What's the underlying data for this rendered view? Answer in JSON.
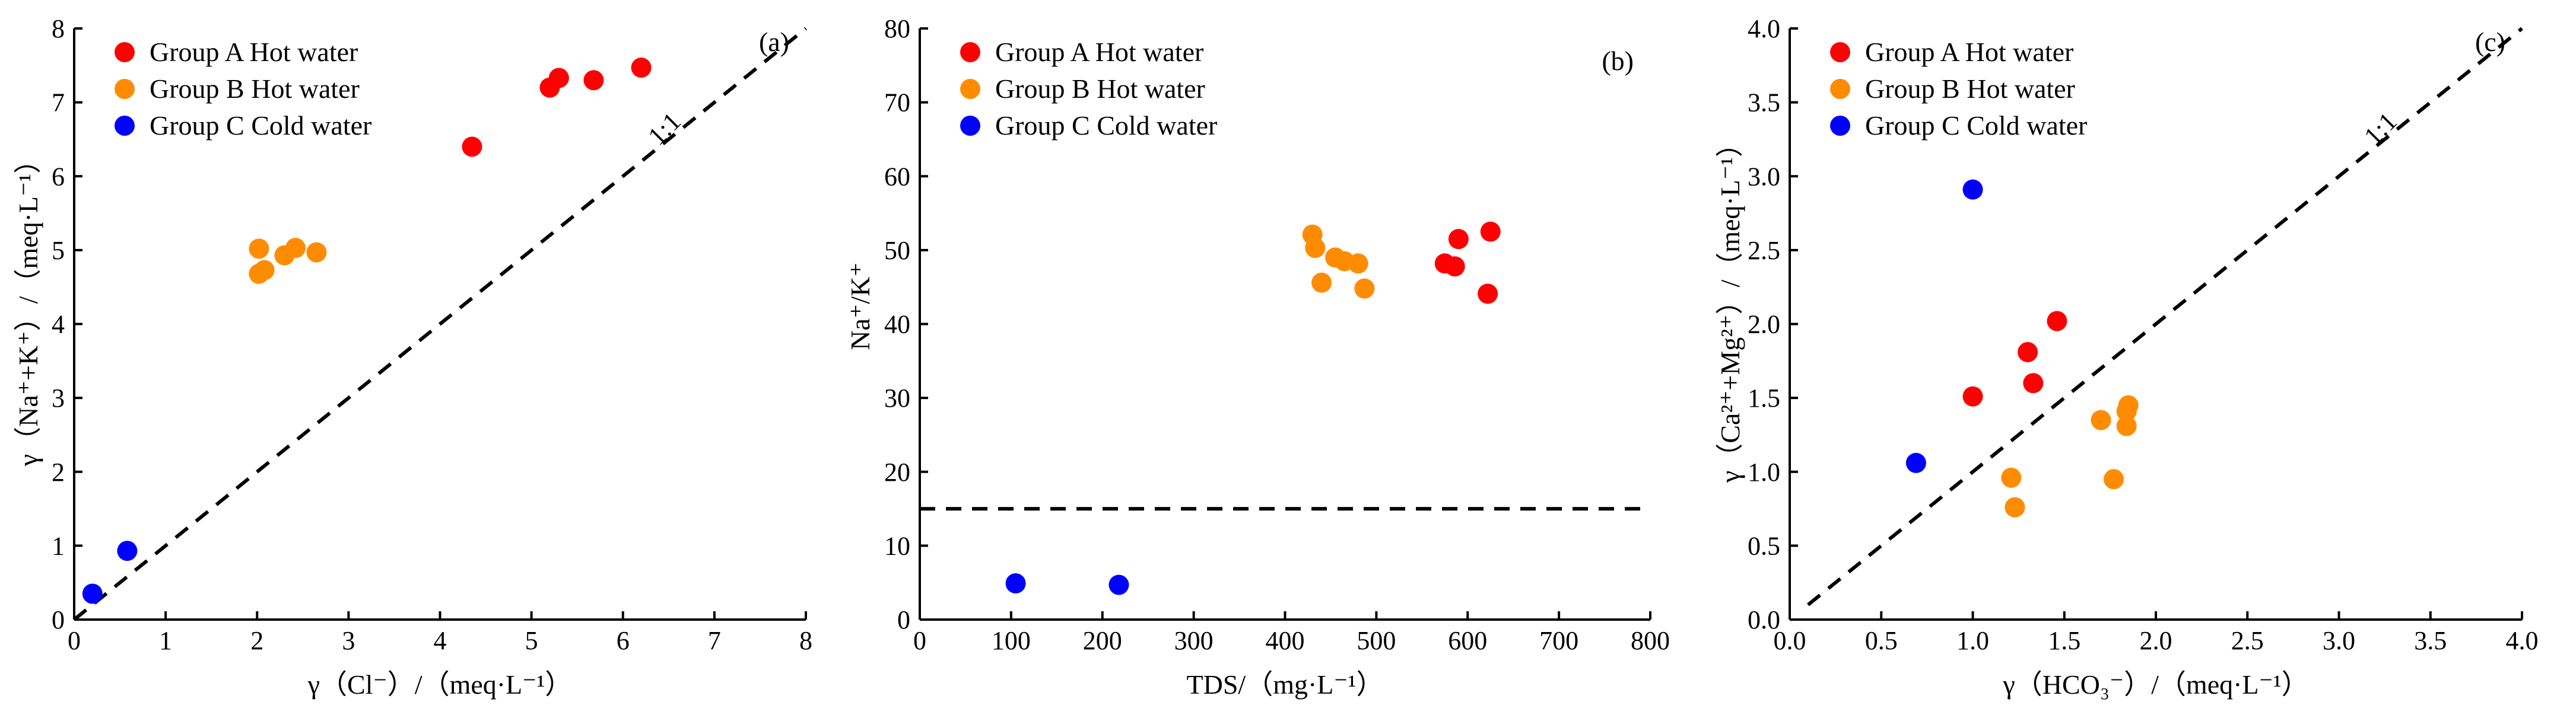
{
  "chart_data": [
    {
      "type": "scatter",
      "panel_label": "(a)",
      "xlabel": "γ（Cl⁻）/（meq·L⁻¹）",
      "ylabel": "γ（Na⁺+K⁺）/（meq·L⁻¹）",
      "xlim": [
        0,
        8
      ],
      "ylim": [
        0,
        8
      ],
      "xticks": [
        "0",
        "1",
        "2",
        "3",
        "4",
        "5",
        "6",
        "7",
        "8"
      ],
      "yticks": [
        "0",
        "1",
        "2",
        "3",
        "4",
        "5",
        "6",
        "7",
        "8"
      ],
      "legend_position": "top-left",
      "reference_line": {
        "kind": "diagonal",
        "from": [
          0,
          0
        ],
        "to": [
          8,
          8
        ],
        "label": "1:1"
      },
      "series": [
        {
          "name": "Group A Hot water",
          "color": "#ff0000",
          "points": [
            [
              4.35,
              6.4
            ],
            [
              5.2,
              7.2
            ],
            [
              5.3,
              7.33
            ],
            [
              5.68,
              7.3
            ],
            [
              6.2,
              7.47
            ]
          ]
        },
        {
          "name": "Group B Hot water",
          "color": "#ff8c00",
          "points": [
            [
              2.02,
              5.02
            ],
            [
              2.02,
              4.68
            ],
            [
              2.08,
              4.73
            ],
            [
              2.3,
              4.93
            ],
            [
              2.42,
              5.03
            ],
            [
              2.65,
              4.97
            ]
          ]
        },
        {
          "name": "Group C Cold water",
          "color": "#0000ff",
          "points": [
            [
              0.2,
              0.35
            ],
            [
              0.58,
              0.93
            ]
          ]
        }
      ]
    },
    {
      "type": "scatter",
      "panel_label": "(b)",
      "xlabel": "TDS/（mg·L⁻¹）",
      "ylabel": "Na⁺/K⁺",
      "xlim": [
        0,
        800
      ],
      "ylim": [
        0,
        80
      ],
      "xticks": [
        "0",
        "100",
        "200",
        "300",
        "400",
        "500",
        "600",
        "700",
        "800"
      ],
      "yticks": [
        "0",
        "10",
        "20",
        "30",
        "40",
        "50",
        "60",
        "70",
        "80"
      ],
      "legend_position": "top-left",
      "reference_line": {
        "kind": "horizontal",
        "y": 15,
        "from_x": 0,
        "to_x": 800
      },
      "series": [
        {
          "name": "Group A Hot water",
          "color": "#ff0000",
          "points": [
            [
              575,
              48.2
            ],
            [
              586,
              47.8
            ],
            [
              590,
              51.5
            ],
            [
              622,
              44.1
            ],
            [
              625,
              52.5
            ]
          ]
        },
        {
          "name": "Group B Hot water",
          "color": "#ff8c00",
          "points": [
            [
              430,
              52.1
            ],
            [
              433,
              50.3
            ],
            [
              440,
              45.6
            ],
            [
              455,
              49
            ],
            [
              465,
              48.5
            ],
            [
              480,
              48.2
            ],
            [
              487,
              44.8
            ]
          ]
        },
        {
          "name": "Group C Cold water",
          "color": "#0000ff",
          "points": [
            [
              105,
              4.9
            ],
            [
              218,
              4.7
            ]
          ]
        }
      ]
    },
    {
      "type": "scatter",
      "panel_label": "(c)",
      "xlabel": "γ（HCO₃⁻）/（meq·L⁻¹）",
      "ylabel": "γ（Ca²⁺+Mg²⁺）/（meq·L⁻¹）",
      "xlim": [
        0,
        4
      ],
      "ylim": [
        0,
        4
      ],
      "xticks": [
        "0.0",
        "0.5",
        "1.0",
        "1.5",
        "2.0",
        "2.5",
        "3.0",
        "3.5",
        "4.0"
      ],
      "yticks": [
        "0.0",
        "0.5",
        "1.0",
        "1.5",
        "2.0",
        "2.5",
        "3.0",
        "3.5",
        "4.0"
      ],
      "legend_position": "top-left",
      "reference_line": {
        "kind": "diagonal",
        "from": [
          0.1,
          0.1
        ],
        "to": [
          4,
          4
        ],
        "label": "1:1"
      },
      "series": [
        {
          "name": "Group A Hot water",
          "color": "#ff0000",
          "points": [
            [
              1.0,
              1.51
            ],
            [
              1.3,
              1.81
            ],
            [
              1.33,
              1.6
            ],
            [
              1.46,
              2.02
            ]
          ]
        },
        {
          "name": "Group B Hot water",
          "color": "#ff8c00",
          "points": [
            [
              1.21,
              0.96
            ],
            [
              1.23,
              0.76
            ],
            [
              1.7,
              1.35
            ],
            [
              1.77,
              0.95
            ],
            [
              1.84,
              1.31
            ],
            [
              1.84,
              1.41
            ],
            [
              1.85,
              1.45
            ]
          ]
        },
        {
          "name": "Group C Cold water",
          "color": "#0000ff",
          "points": [
            [
              0.69,
              1.06
            ],
            [
              1.0,
              2.91
            ]
          ]
        }
      ]
    }
  ]
}
